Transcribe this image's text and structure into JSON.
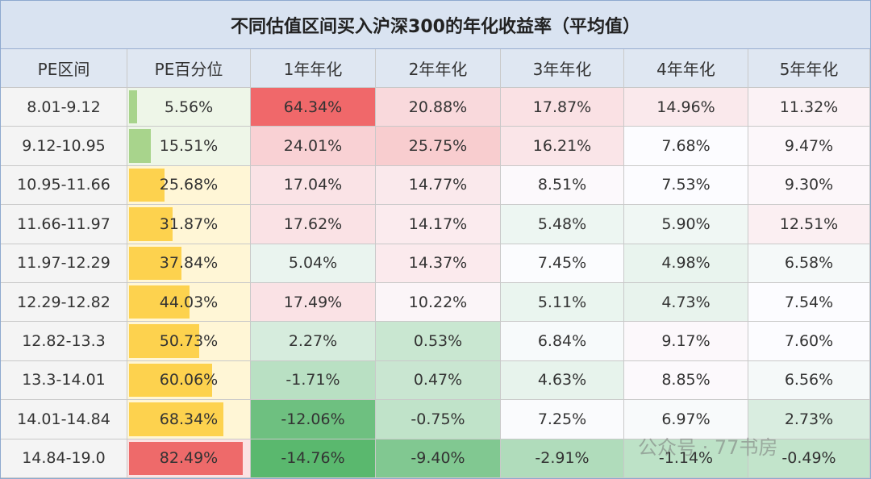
{
  "table": {
    "title": "不同估值区间买入沪深300的年化收益率（平均值）",
    "columns": [
      "PE区间",
      "PE百分位",
      "1年年化",
      "2年年化",
      "3年年化",
      "4年年化",
      "5年年化"
    ],
    "rows": [
      [
        "8.01-9.12",
        "5.56%",
        "64.34%",
        "20.88%",
        "17.87%",
        "14.96%",
        "11.32%"
      ],
      [
        "9.12-10.95",
        "15.51%",
        "24.01%",
        "25.75%",
        "16.21%",
        "7.68%",
        "9.47%"
      ],
      [
        "10.95-11.66",
        "25.68%",
        "17.04%",
        "14.77%",
        "8.51%",
        "7.53%",
        "9.30%"
      ],
      [
        "11.66-11.97",
        "31.87%",
        "17.62%",
        "14.17%",
        "5.48%",
        "5.90%",
        "12.51%"
      ],
      [
        "11.97-12.29",
        "37.84%",
        "5.04%",
        "14.37%",
        "7.45%",
        "4.98%",
        "6.58%"
      ],
      [
        "12.29-12.82",
        "44.03%",
        "17.49%",
        "10.22%",
        "5.11%",
        "4.73%",
        "7.54%"
      ],
      [
        "12.82-13.3",
        "50.73%",
        "2.27%",
        "0.53%",
        "6.84%",
        "9.17%",
        "7.60%"
      ],
      [
        "13.3-14.01",
        "60.06%",
        "-1.71%",
        "0.47%",
        "4.63%",
        "8.85%",
        "6.56%"
      ],
      [
        "14.01-14.84",
        "68.34%",
        "-12.06%",
        "-0.75%",
        "7.25%",
        "6.97%",
        "2.73%"
      ],
      [
        "14.84-19.0",
        "82.49%",
        "-14.76%",
        "-9.40%",
        "-2.91%",
        "-1.14%",
        "-0.49%"
      ]
    ]
  },
  "watermark": "公众号 · 77书房"
}
